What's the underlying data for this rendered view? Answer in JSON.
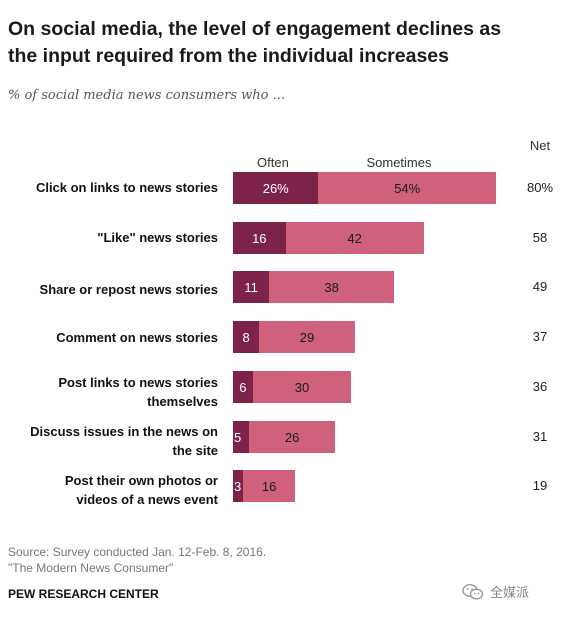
{
  "header": {
    "title_line1": "On social media, the level of engagement declines as",
    "title_line2": "the input required from the individual increases",
    "subtitle": "% of social media news consumers who ..."
  },
  "chart_data": {
    "type": "bar",
    "orientation": "horizontal",
    "stacked": true,
    "categories": [
      [
        "Click on links to news stories"
      ],
      [
        "\"Like\" news stories"
      ],
      [
        "Share or repost news stories"
      ],
      [
        "Comment on news stories"
      ],
      [
        "Post links to news stories",
        "themselves"
      ],
      [
        "Discuss issues in the news on",
        "the site"
      ],
      [
        "Post their own photos or",
        "videos of a news event"
      ]
    ],
    "series": [
      {
        "name": "Often",
        "color": "#7d2248",
        "values": [
          26,
          16,
          11,
          8,
          6,
          5,
          3
        ],
        "labels": [
          "26%",
          "16",
          "11",
          "8",
          "6",
          "5",
          "3"
        ]
      },
      {
        "name": "Sometimes",
        "color": "#d0617c",
        "values": [
          54,
          42,
          38,
          29,
          30,
          26,
          16
        ],
        "labels": [
          "54%",
          "42",
          "38",
          "29",
          "30",
          "26",
          "16"
        ]
      }
    ],
    "net_header": "Net",
    "net": [
      "80%",
      "58",
      "49",
      "37",
      "36",
      "31",
      "19"
    ],
    "xlim": [
      0,
      80
    ],
    "grid": false,
    "legend": "top"
  },
  "footer": {
    "source_line1": "Source: Survey conducted Jan. 12-Feb. 8, 2016.",
    "source_line2": "\"The Modern News Consumer\"",
    "brand": "PEW RESEARCH CENTER",
    "watermark_text": "全媒派",
    "watermark_icon": "wechat-icon"
  }
}
